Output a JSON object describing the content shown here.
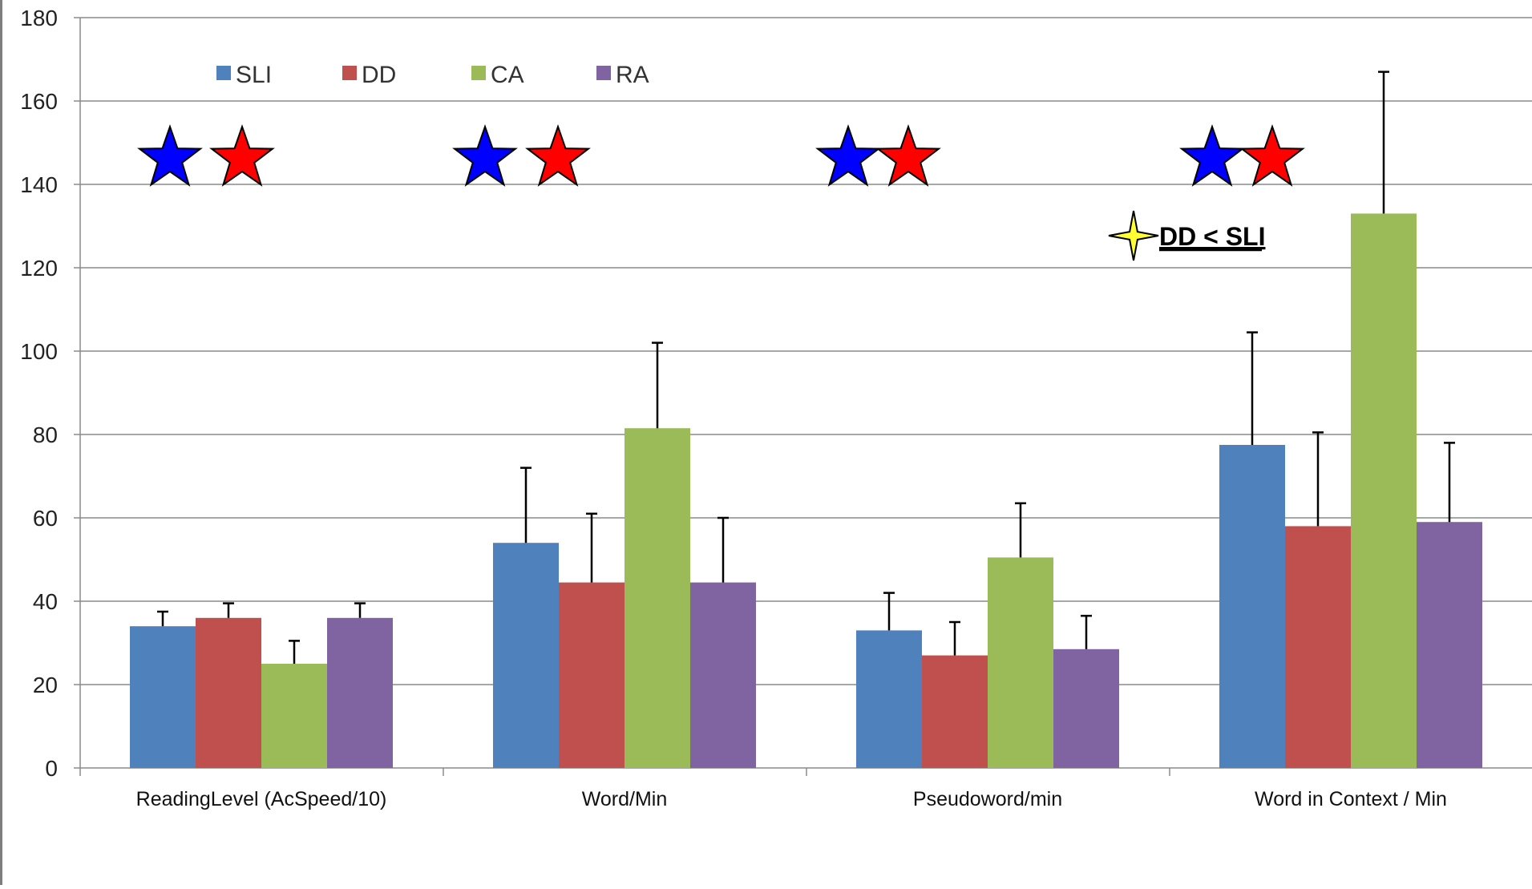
{
  "colors": {
    "SLI": "#4f81bd",
    "DD": "#c0504d",
    "CA": "#9bbb59",
    "RA": "#8064a2",
    "grid": "#8a8a8a",
    "star_blue": "#0000ff",
    "star_red": "#ff0000",
    "note_star": "#ffff33"
  },
  "chart_data": {
    "type": "bar",
    "title": "",
    "xlabel": "",
    "ylabel": "",
    "ylim": [
      0,
      180
    ],
    "yticks": [
      0,
      20,
      40,
      60,
      80,
      100,
      120,
      140,
      160,
      180
    ],
    "grid": true,
    "legend_position": "top-left",
    "categories": [
      "ReadingLevel (AcSpeed/10)",
      "Word/Min",
      "Pseudoword/min",
      "Word in Context / Min"
    ],
    "series": [
      {
        "name": "SLI",
        "values": [
          34,
          54,
          33,
          77.5
        ],
        "error_upper": [
          37.5,
          72,
          42,
          104.5
        ]
      },
      {
        "name": "DD",
        "values": [
          36,
          44.5,
          27,
          58
        ],
        "error_upper": [
          39.5,
          61,
          35,
          80.5
        ]
      },
      {
        "name": "CA",
        "values": [
          25,
          81.5,
          50.5,
          133
        ],
        "error_upper": [
          30.5,
          102,
          63.5,
          167
        ]
      },
      {
        "name": "RA",
        "values": [
          36,
          44.5,
          28.5,
          59
        ],
        "error_upper": [
          39.5,
          60,
          36.5,
          78
        ]
      }
    ],
    "significance_markers": [
      {
        "category_index": 0,
        "stars": [
          "star_blue",
          "star_red"
        ]
      },
      {
        "category_index": 1,
        "stars": [
          "star_blue",
          "star_red"
        ]
      },
      {
        "category_index": 2,
        "stars": [
          "star_blue",
          "star_red"
        ]
      },
      {
        "category_index": 3,
        "stars": [
          "star_blue",
          "star_red"
        ]
      }
    ],
    "annotation": {
      "icon": "four-point-star-icon",
      "text": "DD < SLI"
    }
  }
}
